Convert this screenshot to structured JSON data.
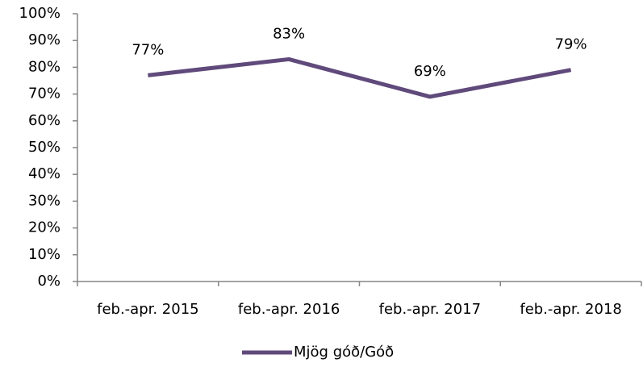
{
  "chart_data": {
    "type": "line",
    "categories": [
      "feb.-apr. 2015",
      "feb.-apr. 2016",
      "feb.-apr. 2017",
      "feb.-apr. 2018"
    ],
    "series": [
      {
        "name": "Mjög góð/Góð",
        "color": "#604a7b",
        "values": [
          77,
          83,
          69,
          79
        ],
        "value_labels": [
          "77%",
          "83%",
          "69%",
          "79%"
        ]
      }
    ],
    "ylim": [
      0,
      100
    ],
    "yticks": [
      {
        "value": 0,
        "label": "0%"
      },
      {
        "value": 10,
        "label": "10%"
      },
      {
        "value": 20,
        "label": "20%"
      },
      {
        "value": 30,
        "label": "30%"
      },
      {
        "value": 40,
        "label": "40%"
      },
      {
        "value": 50,
        "label": "50%"
      },
      {
        "value": 60,
        "label": "60%"
      },
      {
        "value": 70,
        "label": "70%"
      },
      {
        "value": 80,
        "label": "80%"
      },
      {
        "value": 90,
        "label": "90%"
      },
      {
        "value": 100,
        "label": "100%"
      }
    ],
    "grid": false,
    "legend": "bottom"
  }
}
